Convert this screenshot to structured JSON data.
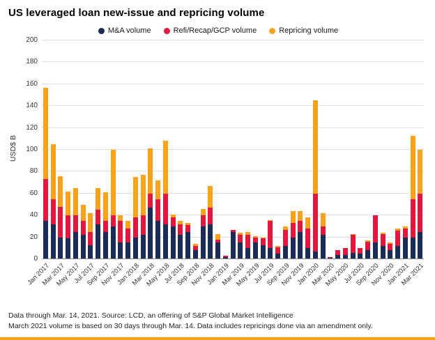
{
  "title": "US leveraged loan new-issue and repricing volume",
  "footnotes": {
    "line1": "Data through Mar. 14, 2021. Source: LCD, an offering of S&P Global Market Intelligence",
    "line2": "March 2021 volume is based on 30 days through Mar. 14. Data includes repricings done via an amendment only."
  },
  "accent_color": "#f9a21b",
  "chart_data": {
    "type": "bar",
    "stacked": true,
    "title": "US leveraged loan new-issue and repricing volume",
    "xlabel": "",
    "ylabel": "USD$ B",
    "ylim": [
      0,
      200
    ],
    "ytick_step": 20,
    "grid": true,
    "legend_position": "top",
    "tick_every": 2,
    "categories": [
      "Jan 2017",
      "Feb 2017",
      "Mar 2017",
      "Apr 2017",
      "May 2017",
      "Jun 2017",
      "Jul 2017",
      "Aug 2017",
      "Sep 2017",
      "Oct 2017",
      "Nov 2017",
      "Dec 2017",
      "Jan 2018",
      "Feb 2018",
      "Mar 2018",
      "Apr 2018",
      "May 2018",
      "Jun 2018",
      "Jul 2018",
      "Aug 2018",
      "Sep 2018",
      "Oct 2018",
      "Nov 2018",
      "Dec 2018",
      "Jan 2019",
      "Feb 2019",
      "Mar 2019",
      "Apr 2019",
      "May 2019",
      "Jun 2019",
      "Jul 2019",
      "Aug 2019",
      "Sep 2019",
      "Oct 2019",
      "Nov 2019",
      "Dec 2019",
      "Jan 2020",
      "Feb 2020",
      "Mar 2020",
      "Apr 2020",
      "May 2020",
      "Jun 2020",
      "Jul 2020",
      "Aug 2020",
      "Sep 2020",
      "Oct 2020",
      "Nov 2020",
      "Dec 2020",
      "Jan 2021",
      "Feb 2021",
      "Mar 2021"
    ],
    "series": [
      {
        "name": "M&A volume",
        "color": "#1a2c56",
        "values": [
          35,
          32,
          20,
          19,
          25,
          22,
          13,
          32,
          25,
          30,
          15,
          15,
          20,
          22,
          47,
          35,
          32,
          30,
          22,
          25,
          8,
          30,
          32,
          15,
          2,
          25,
          15,
          10,
          15,
          13,
          10,
          5,
          12,
          20,
          25,
          10,
          7,
          22,
          1,
          4,
          4,
          6,
          5,
          8,
          15,
          12,
          8,
          12,
          20,
          20,
          25
        ]
      },
      {
        "name": "Refi/Recap/GCP volume",
        "color": "#e4173e",
        "values": [
          38,
          23,
          28,
          21,
          15,
          13,
          12,
          13,
          10,
          10,
          20,
          13,
          18,
          18,
          13,
          20,
          28,
          8,
          10,
          6,
          4,
          10,
          15,
          3,
          1,
          2,
          7,
          12,
          5,
          6,
          25,
          6,
          15,
          13,
          10,
          18,
          53,
          8,
          1,
          4,
          6,
          16,
          5,
          8,
          25,
          11,
          6,
          14,
          8,
          35,
          35
        ]
      },
      {
        "name": "Repricing volume",
        "color": "#f9a21b",
        "values": [
          84,
          50,
          28,
          22,
          25,
          15,
          17,
          20,
          26,
          60,
          5,
          7,
          37,
          37,
          41,
          17,
          48,
          3,
          3,
          2,
          2,
          6,
          20,
          5,
          0,
          0,
          2,
          3,
          1,
          1,
          1,
          1,
          3,
          11,
          9,
          10,
          85,
          12,
          0,
          0,
          0,
          1,
          0,
          1,
          0,
          1,
          1,
          2,
          2,
          58,
          40
        ]
      }
    ]
  }
}
